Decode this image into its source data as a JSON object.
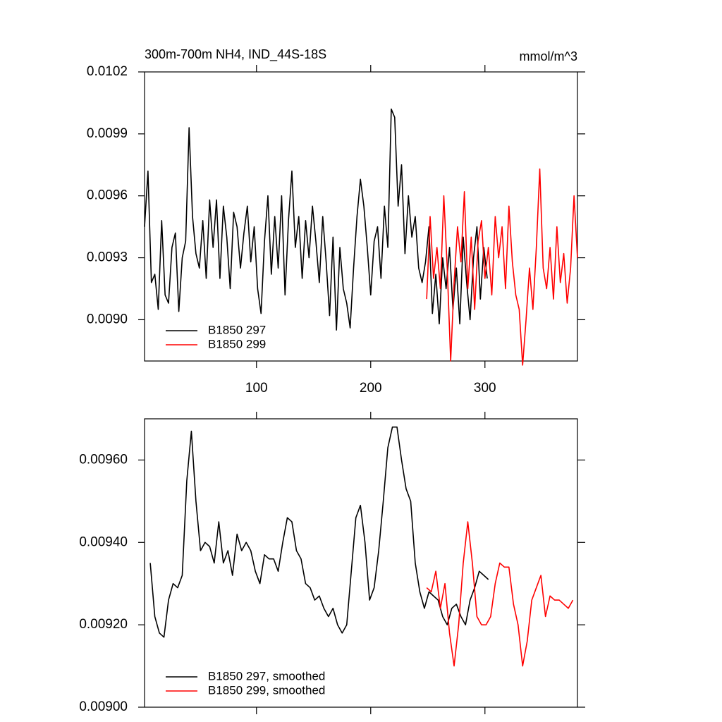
{
  "chart_data": [
    {
      "type": "line",
      "title": "300m-700m NH4, IND_44S-18S",
      "units": "mmol/m^3",
      "xlim": [
        2,
        381
      ],
      "ylim": [
        0.0088,
        0.0102
      ],
      "xticks": [
        100,
        200,
        300
      ],
      "yticks": [
        {
          "value": 0.009,
          "label": "0.0090"
        },
        0.0093,
        0.0096,
        0.0099,
        0.0102
      ],
      "legend": "lower left",
      "series": [
        {
          "name": "B1850 297",
          "color": "#000000",
          "x": [
            2,
            5,
            8,
            11,
            14,
            17,
            20,
            23,
            26,
            29,
            32,
            35,
            38,
            41,
            44,
            47,
            50,
            53,
            56,
            59,
            62,
            65,
            68,
            71,
            74,
            77,
            80,
            83,
            86,
            89,
            92,
            95,
            98,
            101,
            104,
            107,
            110,
            113,
            116,
            119,
            122,
            125,
            128,
            131,
            134,
            137,
            140,
            143,
            146,
            149,
            152,
            155,
            158,
            161,
            164,
            167,
            170,
            173,
            176,
            179,
            182,
            185,
            188,
            191,
            194,
            197,
            200,
            203,
            206,
            209,
            212,
            215,
            218,
            221,
            224,
            227,
            230,
            233,
            236,
            239,
            242,
            245,
            248,
            251,
            254,
            257,
            260,
            263,
            266,
            269,
            272,
            275,
            278,
            281,
            284,
            287,
            290,
            293,
            296,
            299,
            302
          ],
          "values": [
            0.00945,
            0.00972,
            0.00918,
            0.00922,
            0.00905,
            0.00948,
            0.00912,
            0.00908,
            0.00935,
            0.00942,
            0.00904,
            0.0093,
            0.00938,
            0.00993,
            0.0095,
            0.00932,
            0.00925,
            0.00948,
            0.0092,
            0.00958,
            0.00935,
            0.00958,
            0.0092,
            0.00955,
            0.0094,
            0.00915,
            0.00952,
            0.00945,
            0.00925,
            0.00942,
            0.00955,
            0.00928,
            0.00945,
            0.00915,
            0.00903,
            0.00938,
            0.0096,
            0.00922,
            0.0095,
            0.00925,
            0.0096,
            0.00912,
            0.00948,
            0.00972,
            0.00935,
            0.0095,
            0.0092,
            0.00948,
            0.0093,
            0.00955,
            0.00938,
            0.00918,
            0.0095,
            0.00928,
            0.00902,
            0.0094,
            0.00895,
            0.00935,
            0.00915,
            0.00908,
            0.00896,
            0.00925,
            0.0095,
            0.00968,
            0.00955,
            0.00935,
            0.00912,
            0.00938,
            0.00945,
            0.0092,
            0.00955,
            0.00935,
            0.01002,
            0.00998,
            0.00955,
            0.00975,
            0.00932,
            0.0096,
            0.0094,
            0.0095,
            0.00925,
            0.00918,
            0.00928,
            0.00945,
            0.00903,
            0.00922,
            0.00898,
            0.0093,
            0.00915,
            0.00935,
            0.00905,
            0.00925,
            0.00898,
            0.0094,
            0.00918,
            0.009,
            0.0093,
            0.00945,
            0.0091,
            0.00935,
            0.0092
          ]
        },
        {
          "name": "B1850 299",
          "color": "#ff0000",
          "x": [
            249,
            252,
            255,
            258,
            261,
            264,
            267,
            270,
            273,
            276,
            279,
            282,
            285,
            288,
            291,
            294,
            297,
            300,
            303,
            306,
            309,
            312,
            315,
            318,
            321,
            324,
            327,
            330,
            333,
            336,
            339,
            342,
            345,
            348,
            351,
            354,
            357,
            360,
            363,
            366,
            369,
            372,
            375,
            378,
            381
          ],
          "values": [
            0.0091,
            0.0095,
            0.0092,
            0.00935,
            0.00915,
            0.0096,
            0.00925,
            0.0088,
            0.00918,
            0.00945,
            0.00928,
            0.00962,
            0.00915,
            0.0094,
            0.00905,
            0.00938,
            0.00948,
            0.0092,
            0.00935,
            0.00912,
            0.0095,
            0.0093,
            0.00945,
            0.00915,
            0.00955,
            0.00928,
            0.00912,
            0.00905,
            0.00878,
            0.009,
            0.00925,
            0.00905,
            0.00935,
            0.00973,
            0.00925,
            0.00915,
            0.00935,
            0.0091,
            0.00945,
            0.00918,
            0.00932,
            0.00908,
            0.00925,
            0.0096,
            0.0093
          ]
        }
      ]
    },
    {
      "type": "line",
      "xlim": [
        2,
        381
      ],
      "ylim": [
        0.009,
        0.0097
      ],
      "xticks": [
        100,
        200,
        300
      ],
      "xtick_labels": false,
      "yticks": [
        {
          "value": 0.009,
          "label": "0.00900"
        },
        {
          "value": 0.0092,
          "label": "0.00920"
        },
        {
          "value": 0.0094,
          "label": "0.00940"
        },
        {
          "value": 0.0096,
          "label": "0.00960"
        }
      ],
      "legend": "lower left",
      "series": [
        {
          "name": "B1850 297, smoothed",
          "color": "#000000",
          "x": [
            7,
            11,
            15,
            19,
            23,
            27,
            31,
            35,
            39,
            43,
            47,
            51,
            55,
            59,
            63,
            67,
            71,
            75,
            79,
            83,
            87,
            91,
            95,
            99,
            103,
            107,
            111,
            115,
            119,
            123,
            127,
            131,
            135,
            139,
            143,
            147,
            151,
            155,
            159,
            163,
            167,
            171,
            175,
            179,
            183,
            187,
            191,
            195,
            199,
            203,
            207,
            211,
            215,
            219,
            223,
            227,
            231,
            235,
            239,
            243,
            247,
            251,
            255,
            259,
            263,
            267,
            271,
            275,
            279,
            283,
            287,
            291,
            295,
            299,
            303
          ],
          "values": [
            0.00935,
            0.00922,
            0.00918,
            0.00917,
            0.00926,
            0.0093,
            0.00929,
            0.00932,
            0.00955,
            0.00967,
            0.0095,
            0.00938,
            0.0094,
            0.00939,
            0.00935,
            0.00945,
            0.00935,
            0.00938,
            0.00932,
            0.00942,
            0.00938,
            0.0094,
            0.00938,
            0.00933,
            0.0093,
            0.00937,
            0.00936,
            0.00936,
            0.00933,
            0.0094,
            0.00946,
            0.00945,
            0.00938,
            0.00936,
            0.0093,
            0.00929,
            0.00926,
            0.00927,
            0.00924,
            0.00922,
            0.00924,
            0.0092,
            0.00918,
            0.0092,
            0.00933,
            0.00946,
            0.00949,
            0.0094,
            0.00926,
            0.00929,
            0.00938,
            0.0095,
            0.00963,
            0.00968,
            0.00968,
            0.0096,
            0.00953,
            0.0095,
            0.00935,
            0.00928,
            0.00924,
            0.00928,
            0.00927,
            0.00926,
            0.00922,
            0.0092,
            0.00924,
            0.00925,
            0.00922,
            0.0092,
            0.00926,
            0.00929,
            0.00933,
            0.00932,
            0.00931
          ]
        },
        {
          "name": "B1850 299, smoothed",
          "color": "#ff0000",
          "x": [
            249,
            253,
            257,
            261,
            265,
            269,
            273,
            277,
            281,
            285,
            289,
            293,
            297,
            301,
            305,
            309,
            313,
            317,
            321,
            325,
            329,
            333,
            337,
            341,
            345,
            349,
            353,
            357,
            361,
            365,
            369,
            373,
            377
          ],
          "values": [
            0.00929,
            0.00928,
            0.00933,
            0.00924,
            0.0093,
            0.00918,
            0.0091,
            0.0092,
            0.00935,
            0.00945,
            0.00935,
            0.00922,
            0.0092,
            0.0092,
            0.00922,
            0.0093,
            0.00935,
            0.00934,
            0.00934,
            0.00925,
            0.0092,
            0.0091,
            0.00916,
            0.00926,
            0.00929,
            0.00932,
            0.00922,
            0.00927,
            0.00926,
            0.00926,
            0.00925,
            0.00924,
            0.00926
          ]
        }
      ]
    }
  ]
}
